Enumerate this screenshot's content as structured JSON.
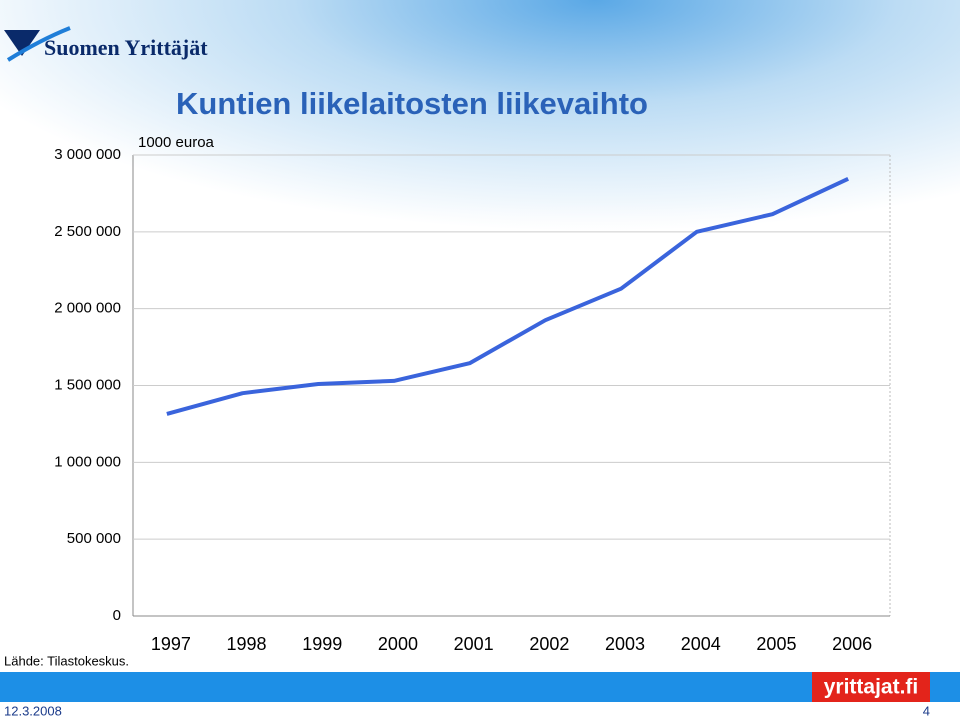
{
  "slide": {
    "logo": "Suomen Yrittäjät",
    "source": "Lähde: Tilastokeskus.",
    "date": "12.3.2008",
    "page": "4",
    "brand": "yrittajat.fi"
  },
  "chart_data": {
    "type": "line",
    "title": "Kuntien liikelaitosten liikevaihto",
    "y_label": "1000 euroa",
    "categories": [
      "1997",
      "1998",
      "1999",
      "2000",
      "2001",
      "2002",
      "2003",
      "2004",
      "2005",
      "2006"
    ],
    "values": [
      1315000,
      1450000,
      1510000,
      1530000,
      1645000,
      1925000,
      2130000,
      2500000,
      2615000,
      2845000
    ],
    "color": "#3a64dc",
    "ylim": [
      0,
      3000000
    ],
    "yticks": [
      0,
      {
        "value": 500000,
        "label": "500 000"
      },
      {
        "value": 1000000,
        "label": "1 000 000"
      },
      {
        "value": 1500000,
        "label": "1 500 000"
      },
      {
        "value": 2000000,
        "label": "2 000 000"
      },
      {
        "value": 2500000,
        "label": "2 500 000"
      },
      {
        "value": 3000000,
        "label": "3 000 000"
      }
    ],
    "grid": true
  }
}
